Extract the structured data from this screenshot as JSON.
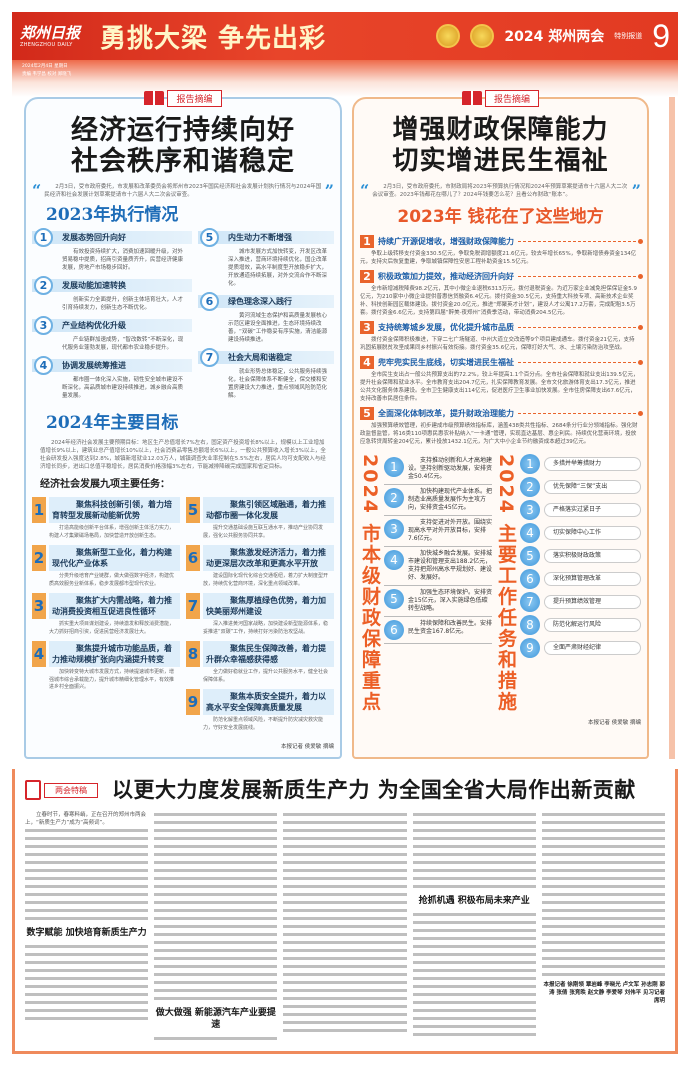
{
  "header": {
    "logo": "郑州日报",
    "logo_en": "ZHENGZHOU DAILY",
    "date": "2024年2月4日 星期日",
    "editors": "责编 韦学昌 校对 郑晓飞",
    "slogan": "勇挑大梁 争先出彩",
    "section": "2024 郑州两会",
    "section_sub": "特别报道",
    "page_number": "9",
    "color": "#d9301e"
  },
  "left": {
    "tag": "报告摘编",
    "title_line1": "经济运行持续向好",
    "title_line2": "社会秩序和谐稳定",
    "intro": "2月3日，受市政府委托，市发展和改革委员会将郑州市2023年国民经济和社会发展计划执行情况与2024年国民经济和社会发展计划草案提请市十六届人大二次会议审查。",
    "sec2023": "2023年执行情况",
    "items": [
      {
        "n": "1",
        "h": "发展态势回升向好",
        "d": "有效投资持续扩大，消费加速回暖升级，对外贸易稳中提质，招商引资量质齐升，民营经济健康发展，房地产市场稳步回好。"
      },
      {
        "n": "2",
        "h": "发展动能加速转换",
        "d": "创新实力全面提升，创新主体培育壮大，人才引育持续发力，创新生态不断优化。"
      },
      {
        "n": "3",
        "h": "产业结构优化升级",
        "d": "产业链群加速成势，“智改数转”不断深化，现代服务业蓬勃发展，现代都市农业稳步提升。"
      },
      {
        "n": "4",
        "h": "协调发展统筹推进",
        "d": "都市圈一体化深入实施，韧性安全城市建设不断深化，高品质城市建设持续推进，城乡融合高质量发展。"
      },
      {
        "n": "5",
        "h": "内生动力不断增强",
        "d": "城市发展方式加快转变，开发区改革深入推进，营商环境持续优化，国企改革提质增效，高水平制度型开放稳步扩大，开放通道持续拓展，对外交流合作不断深化。"
      },
      {
        "n": "6",
        "h": "绿色理念深入践行",
        "d": "黄河流域生态保护和高质量发展核心示范区建设全面推进，生态环境持续改善，“双碳”工作稳妥有序实施，清洁能源建设持续推进。"
      },
      {
        "n": "7",
        "h": "社会大局和谐稳定",
        "d": "就业形势总体稳定，公共服务持续强化，社会保障体系不断健全，保交楼和安置房建设大力推进，重点领域风险防范化解。"
      }
    ],
    "sec2024": "2024年主要目标",
    "goals": "2024年经济社会发展主要预期目标：地区生产总值增长7%左右，固定资产投资增长8%以上，规模以上工业增加值增长9%以上，建筑业总产值增长10%以上，社会消费品零售总额增长6%以上，一般公共预算收入增长3%以上，全社会研发投入强度达到2.8%，城镇新增就业12.03万人，城镇调查失业率控制在5.5%左右，居民人均可支配收入与经济增长同步，进出口总值平稳增长，居民消费价格涨幅3%左右，节能减排降碳完成国家和省定目标。",
    "tasks_title": "经济社会发展九项主要任务：",
    "tasks": [
      {
        "n": "1",
        "h": "聚焦科技创新引领，着力培育转型发展新动能新优势",
        "d": "打造高能级创新平台体系，增强创新主体活力实力，构建人才集聚磁场格局，加快营造开放创新生态。"
      },
      {
        "n": "2",
        "h": "聚焦新型工业化，着力构建现代化产业体系",
        "d": "分类升级培育产业链群，做大做强数字经济，构建优质高效服务业新体系，稳步发展都市型现代农业。"
      },
      {
        "n": "3",
        "h": "聚焦扩大内需战略，着力推动消费投资相互促进良性循环",
        "d": "抓实重大项目谋划建设，持续激发和释放消费潜能，大力抓好招商引资，促进民营经济发展壮大。"
      },
      {
        "n": "4",
        "h": "聚焦提升城市功能品质，着力推动规模扩张向内涵提升转变",
        "d": "加快转变特大城市发展方式，持续提速城市更新，增强城市综合承载能力，提升城市精细化管理水平，有效推进乡村全面振兴。"
      },
      {
        "n": "5",
        "h": "聚焦引领区域融通，着力推动都市圈一体化发展",
        "d": "提升交通基础设施互联互通水平，推动产业协同发展，强化公共服务协同共享。"
      },
      {
        "n": "6",
        "h": "聚焦激发经济活力，着力推动更深层次改革和更高水平开放",
        "d": "建设国际化现代化综合交通枢纽，着力扩大制度型开放，持续优化营商环境，深化重点领域改革。"
      },
      {
        "n": "7",
        "h": "聚焦厚植绿色优势，着力加快美丽郑州建设",
        "d": "深入推进黄河国家战略，加快建设新型能源体系，稳妥推进“双碳”工作，持续打好污染防治攻坚战。"
      },
      {
        "n": "8",
        "h": "聚焦民生保障改善，着力提升群众幸福感获得感",
        "d": "全力做好稳就业工作，提升公共服务水平，健全社会保障体系。"
      },
      {
        "n": "9",
        "h": "聚焦本质安全提升，着力以高水平安全保障高质量发展",
        "d": "防范化解重点领域风险，不断提升防灾减灾救灾能力，守好安全发展底线。"
      }
    ],
    "byline": "本报记者 侯爱敏 摘编"
  },
  "right": {
    "tag": "报告摘编",
    "title_line1": "增强财政保障能力",
    "title_line2": "切实增进民生福祉",
    "intro": "2月3日，受市政府委托，市财政局将2023年预算执行情况和2024年预算草案提请市十六届人大二次会议审查。2023年钱都花在哪儿了？2024年钱要怎么花？且看公布财政“账本”。",
    "sec2023": "2023年 钱花在了这些地方",
    "items": [
      {
        "n": "1",
        "h": "持续广开源促增收，增强财政保障能力",
        "d": "争取上级转移支付资金330.5亿元，争取免税调增额度21.6亿元，较去年增长65%，争取新增债券资金134亿元，支持灾后恢复重建，争取城镇保障性安居工程补助资金15.5亿元。"
      },
      {
        "n": "2",
        "h": "积极政策加力提效，推动经济回升向好",
        "d": "全市新增减税降费98.2亿元，其中小微企业退税6313万元，拨付退税资金。为近万家企业减免担保保证金5.9亿元，为210家中小微企业提供普惠信贷融资6.4亿元。拨付资金30.5亿元，支持重大科技专项、高新技术企业奖补、科技创新园区载体建设。拨付资金20.0亿元，推进“郑聚英才计划”，建设人才公寓17.2万套，完成配租3.5万套。拨付资金6.6亿元，支持第四届“醉美·夜郑州”消费季活动，带动消费204.5亿元。"
      },
      {
        "n": "3",
        "h": "支持统筹城乡发展，优化提升城市品质",
        "d": "拨付资金保障积极推进，下穿二七广场隧道、中州大道立交改造等9个项目建成通车。拨付资金21亿元，支持巩固拓展脱贫攻坚成果同乡村振兴有效衔接。拨付资金35.6亿元，保障打好大气、水、土壤污染防治攻坚战。"
      },
      {
        "n": "4",
        "h": "兜牢兜实民生底线，切实增进民生福祉",
        "d": "全市民生支出占一般公共预算支出的72.2%，较上年提高1.1个百分点。全市社会保障和就业支出139.5亿元，提升社会保障和就业水平。全市教育支出204.7亿元，扎实保障教育发展。全市文化旅游体育支出17.3亿元，推进公共文化服务体系建设。全市卫生健康支出114亿元，促进医疗卫生事业加快发展。全市住房保障支出67.6亿元，支持改善市民居住条件。"
      },
      {
        "n": "5",
        "h": "全面深化体制改革，提升财政治理能力",
        "d": "加强预算绩效管理，初步建成市级预算绩效指标库，涵盖438类共性指标、2684条分行业分领域指标。强化财政监督监管，将16类110项惠民惠农补贴纳入“一卡通”管理，实现直达基层、惠企利民。持续优化营商环境，投放应急转贷周转金204亿元，累计投放1432.1亿元，为广大中小企业节约融资成本超过39亿元。"
      }
    ],
    "focus_title": "2024 市本级财政保障重点",
    "focus": [
      {
        "n": "1",
        "t": "支持推动创新和人才高地建设。坚持创新驱动发展，安排资金50.4亿元。"
      },
      {
        "n": "2",
        "t": "加快构建现代产业体系。把制造业高质量发展作为主攻方向，安排资金45亿元。"
      },
      {
        "n": "3",
        "t": "支持促进对外开放。围绕实现高水平对外开放目标，安排7.6亿元。"
      },
      {
        "n": "4",
        "t": "加快城乡融合发展。安排城市建设和管理支出188.2亿元，支持把郑州高水平规划好、建设好、发展好。"
      },
      {
        "n": "5",
        "t": "加强生态环境保护。安排资金15亿元，深入实施绿色低碳转型战略。"
      },
      {
        "n": "6",
        "t": "持续保障和改善民生。安排民生资金167.8亿元。"
      }
    ],
    "tasks_title": "2024 主要工作任务和措施",
    "tasks": [
      {
        "n": "1",
        "t": "多措并举筹措财力"
      },
      {
        "n": "2",
        "t": "优先保障“三保”支出"
      },
      {
        "n": "3",
        "t": "严格落实过紧日子"
      },
      {
        "n": "4",
        "t": "切实保障中心工作"
      },
      {
        "n": "5",
        "t": "落实积极财政政策"
      },
      {
        "n": "6",
        "t": "深化预算管理改革"
      },
      {
        "n": "7",
        "t": "提升预算绩效管理"
      },
      {
        "n": "8",
        "t": "防范化解运行风险"
      },
      {
        "n": "9",
        "t": "全面严肃财经纪律"
      }
    ],
    "byline": "本报记者 侯爱敏 摘编"
  },
  "article": {
    "tag": "两会特稿",
    "headline": "以更大力度发展新质生产力 为全国全省大局作出新贡献",
    "lead": "立春时节，春寒料峭，正在召开的郑州市两会上，“新质生产力”成为“高频词”。",
    "subheads": [
      "数字赋能 加快培育新质生产力",
      "做大做强 新能源汽车产业要提速",
      "抢抓机遇 积极布局未来产业"
    ],
    "byline": "本报记者 徐刚领 覃岩峰 李晓光 卢文军 孙志刚 郭涛 张倩 张竞昳 赵文静 李爱琴 刘伟平 见习记者 席玥"
  }
}
